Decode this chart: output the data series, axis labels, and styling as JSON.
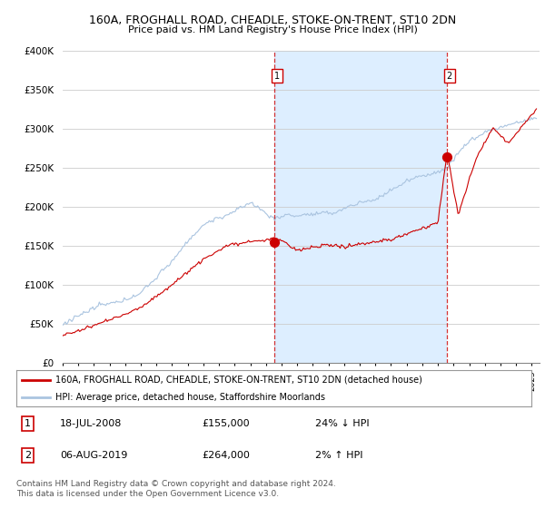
{
  "title": "160A, FROGHALL ROAD, CHEADLE, STOKE-ON-TRENT, ST10 2DN",
  "subtitle": "Price paid vs. HM Land Registry's House Price Index (HPI)",
  "ylim": [
    0,
    400000
  ],
  "yticks": [
    0,
    50000,
    100000,
    150000,
    200000,
    250000,
    300000,
    350000,
    400000
  ],
  "ytick_labels": [
    "£0",
    "£50K",
    "£100K",
    "£150K",
    "£200K",
    "£250K",
    "£300K",
    "£350K",
    "£400K"
  ],
  "xlim_start": 1995.0,
  "xlim_end": 2025.5,
  "sale1_x": 2008.54,
  "sale1_y": 155000,
  "sale1_label": "1",
  "sale1_date": "18-JUL-2008",
  "sale1_price": "£155,000",
  "sale1_hpi": "24% ↓ HPI",
  "sale2_x": 2019.58,
  "sale2_y": 264000,
  "sale2_label": "2",
  "sale2_date": "06-AUG-2019",
  "sale2_price": "£264,000",
  "sale2_hpi": "2% ↑ HPI",
  "legend_line1": "160A, FROGHALL ROAD, CHEADLE, STOKE-ON-TRENT, ST10 2DN (detached house)",
  "legend_line2": "HPI: Average price, detached house, Staffordshire Moorlands",
  "footer": "Contains HM Land Registry data © Crown copyright and database right 2024.\nThis data is licensed under the Open Government Licence v3.0.",
  "line_color_red": "#cc0000",
  "line_color_blue": "#aac4e0",
  "shade_color": "#ddeeff",
  "bg_color": "#ffffff",
  "grid_color": "#cccccc"
}
